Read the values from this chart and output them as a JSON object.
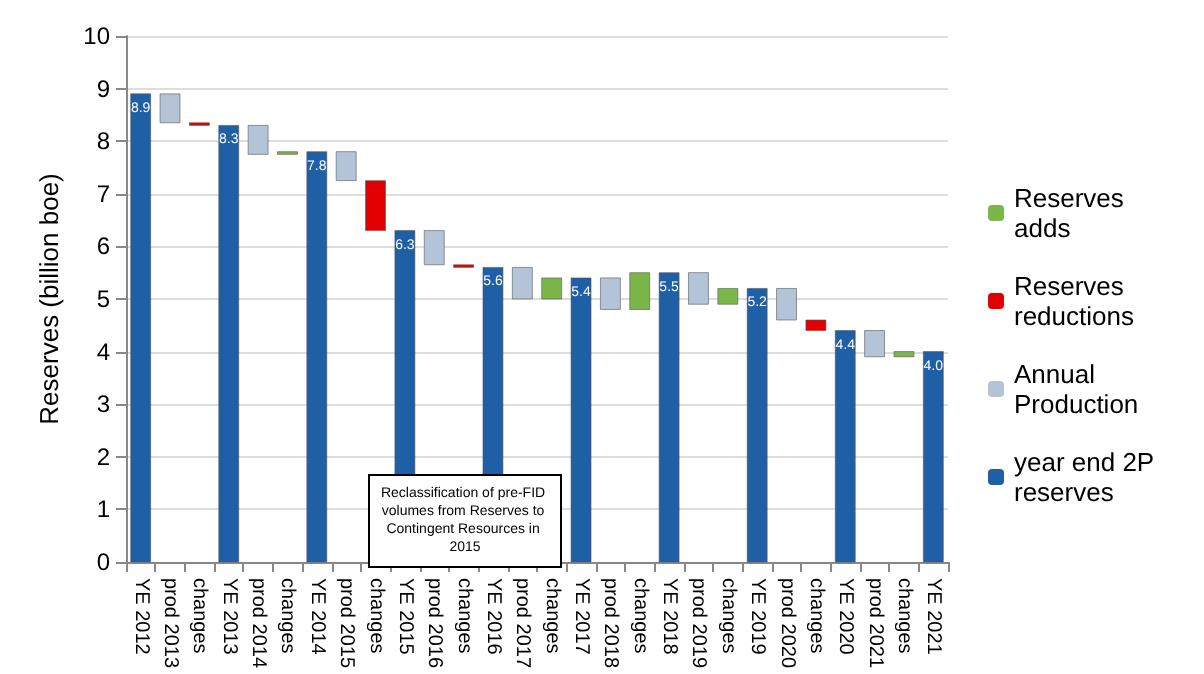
{
  "chart_data": {
    "type": "bar",
    "ylabel": "Reserves (billion boe)",
    "categories": [
      "YE 2012",
      "prod 2013",
      "changes",
      "YE 2013",
      "prod 2014",
      "changes",
      "YE 2014",
      "prod 2015",
      "changes",
      "YE 2015",
      "prod 2016",
      "changes",
      "YE 2016",
      "prod 2017",
      "changes",
      "YE 2017",
      "prod 2018",
      "changes",
      "YE 2018",
      "prod 2019",
      "changes",
      "YE 2019",
      "prod 2020",
      "changes",
      "YE 2020",
      "prod 2021",
      "changes",
      "YE 2021"
    ],
    "series": [
      {
        "name": "Reserves adds",
        "color": "#7ab648",
        "values": [
          null,
          null,
          null,
          null,
          null,
          0.05,
          null,
          null,
          null,
          null,
          null,
          null,
          null,
          null,
          0.4,
          null,
          null,
          0.7,
          null,
          null,
          0.3,
          null,
          null,
          null,
          null,
          null,
          0.1,
          null
        ],
        "base": [
          null,
          null,
          null,
          null,
          null,
          7.75,
          null,
          null,
          null,
          null,
          null,
          null,
          null,
          null,
          5.0,
          null,
          null,
          4.8,
          null,
          null,
          4.9,
          null,
          null,
          null,
          null,
          null,
          3.9,
          null
        ]
      },
      {
        "name": "Reserves reductions",
        "color": "#e00000",
        "values": [
          null,
          null,
          0.05,
          null,
          null,
          null,
          null,
          null,
          0.95,
          null,
          null,
          0.05,
          null,
          null,
          null,
          null,
          null,
          null,
          null,
          null,
          null,
          null,
          null,
          0.2,
          null,
          null,
          null,
          null
        ],
        "base": [
          null,
          null,
          8.3,
          null,
          null,
          null,
          null,
          null,
          6.3,
          null,
          null,
          5.6,
          null,
          null,
          null,
          null,
          null,
          null,
          null,
          null,
          null,
          null,
          null,
          4.4,
          null,
          null,
          null,
          null
        ]
      },
      {
        "name": "Annual Production",
        "color": "#b4c4d8",
        "values": [
          null,
          0.55,
          null,
          null,
          0.55,
          null,
          null,
          0.55,
          null,
          null,
          0.65,
          null,
          null,
          0.6,
          null,
          null,
          0.6,
          null,
          null,
          0.6,
          null,
          null,
          0.6,
          null,
          null,
          0.5,
          null,
          null
        ],
        "base": [
          null,
          8.35,
          null,
          null,
          7.75,
          null,
          null,
          7.25,
          null,
          null,
          5.65,
          null,
          null,
          5.0,
          null,
          null,
          4.8,
          null,
          null,
          4.9,
          null,
          null,
          4.6,
          null,
          null,
          3.9,
          null,
          null
        ]
      },
      {
        "name": "year end 2P reserves",
        "color": "#1f5fa6",
        "values": [
          8.9,
          null,
          null,
          8.3,
          null,
          null,
          7.8,
          null,
          null,
          6.3,
          null,
          null,
          5.6,
          null,
          null,
          5.4,
          null,
          null,
          5.5,
          null,
          null,
          5.2,
          null,
          null,
          4.4,
          null,
          null,
          4.0
        ],
        "value_labels": [
          "8.9",
          null,
          null,
          "8.3",
          null,
          null,
          "7.8",
          null,
          null,
          "6.3",
          null,
          null,
          "5.6",
          null,
          null,
          "5.4",
          null,
          null,
          "5.5",
          null,
          null,
          "5.2",
          null,
          null,
          "4.4",
          null,
          null,
          "4.0"
        ]
      }
    ],
    "ylim": [
      0,
      10
    ],
    "yticks": [
      0,
      1,
      2,
      3,
      4,
      5,
      6,
      7,
      8,
      9,
      10
    ],
    "grid": "y",
    "legend": "right",
    "annotations": [
      "Reclassification of pre-FID volumes from Reserves to Contingent Resources in 2015"
    ]
  }
}
